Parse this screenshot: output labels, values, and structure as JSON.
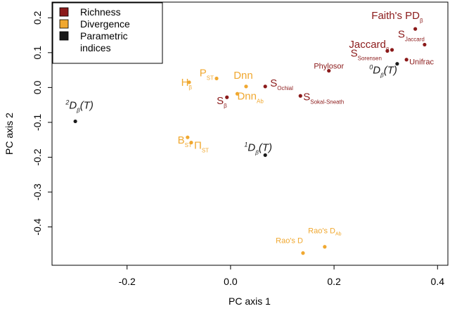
{
  "chart_data": {
    "type": "scatter",
    "xlabel": "PC axis 1",
    "ylabel": "PC axis 2",
    "xlim": [
      -0.345,
      0.42
    ],
    "ylim": [
      -0.51,
      0.245
    ],
    "xticks": [
      -0.2,
      0.0,
      0.2,
      0.4
    ],
    "xtick_labels": [
      "-0.2",
      "0.0",
      "0.2",
      "0.4"
    ],
    "yticks": [
      -0.4,
      -0.3,
      -0.2,
      -0.1,
      0.0,
      0.1,
      0.2
    ],
    "ytick_labels": [
      "-0.4",
      "-0.3",
      "-0.2",
      "-0.1",
      "0.0",
      "0.1",
      "0.2"
    ],
    "grid": false,
    "legend_position": "top-left",
    "groups": [
      {
        "id": "richness",
        "label": "Richness",
        "color": "#8b1a1a"
      },
      {
        "id": "divergence",
        "label": "Divergence",
        "color": "#f0a830"
      },
      {
        "id": "parametric",
        "label": "Parametric\nindices",
        "color": "#1a1a1a"
      }
    ],
    "points": [
      {
        "group": "richness",
        "x": 0.357,
        "y": 0.168,
        "label": "Faith's PD",
        "sub": "β",
        "size": "big",
        "anchor": "end",
        "dx": 11,
        "dy": -14
      },
      {
        "group": "richness",
        "x": 0.375,
        "y": 0.123,
        "label": "S",
        "sub": "Jaccard",
        "size": "big",
        "anchor": "end",
        "dx": 0,
        "dy": -10
      },
      {
        "group": "richness",
        "x": 0.312,
        "y": 0.108,
        "label": "Jaccard",
        "sub": "β",
        "size": "big",
        "anchor": "end",
        "dx": -4,
        "dy": -3
      },
      {
        "group": "richness",
        "x": 0.303,
        "y": 0.105,
        "label": "S",
        "sub": "Sorensen",
        "size": "big",
        "anchor": "end",
        "dx": -8,
        "dy": 8
      },
      {
        "group": "richness",
        "x": 0.34,
        "y": 0.08,
        "label": "Unifrac",
        "sub": "",
        "size": "small",
        "anchor": "start",
        "dx": 4,
        "dy": 7
      },
      {
        "group": "richness",
        "x": 0.19,
        "y": 0.048,
        "label": "Phylosor",
        "sub": "",
        "size": "small",
        "anchor": "middle",
        "dx": 0,
        "dy": -3
      },
      {
        "group": "richness",
        "x": 0.067,
        "y": 0.003,
        "label": "S",
        "sub": "Ochial",
        "size": "big",
        "anchor": "start",
        "dx": 7,
        "dy": 0
      },
      {
        "group": "richness",
        "x": 0.135,
        "y": -0.024,
        "label": "S",
        "sub": "Sokal-Sneath",
        "size": "big",
        "anchor": "start",
        "dx": 4,
        "dy": 6
      },
      {
        "group": "richness",
        "x": -0.007,
        "y": -0.028,
        "label": "S",
        "sub": "β",
        "size": "big",
        "anchor": "end",
        "dx": 0,
        "dy": 10
      },
      {
        "group": "divergence",
        "x": -0.027,
        "y": 0.026,
        "label": "P",
        "sub": "ST",
        "size": "big",
        "anchor": "end",
        "dx": -4,
        "dy": -3
      },
      {
        "group": "divergence",
        "x": 0.03,
        "y": 0.003,
        "label": "Dnn",
        "sub": "",
        "size": "big",
        "anchor": "middle",
        "dx": -4,
        "dy": -11
      },
      {
        "group": "divergence",
        "x": -0.08,
        "y": 0.015,
        "label": "H",
        "sub": "β",
        "size": "big",
        "anchor": "end",
        "dx": 4,
        "dy": 5
      },
      {
        "group": "divergence",
        "x": 0.013,
        "y": -0.018,
        "label": "Dnn",
        "sub": "Ab",
        "size": "big",
        "anchor": "start",
        "dx": 0,
        "dy": 8
      },
      {
        "group": "divergence",
        "x": -0.083,
        "y": -0.143,
        "label": "B",
        "sub": "ST",
        "size": "big",
        "anchor": "end",
        "dx": 6,
        "dy": 9
      },
      {
        "group": "divergence",
        "x": -0.076,
        "y": -0.158,
        "label": "Π",
        "sub": "ST",
        "size": "big",
        "anchor": "start",
        "dx": 4,
        "dy": 9
      },
      {
        "group": "divergence",
        "x": 0.14,
        "y": -0.475,
        "label": "Rao's D",
        "sub": "",
        "size": "small",
        "anchor": "end",
        "dx": 0,
        "dy": -14
      },
      {
        "group": "divergence",
        "x": 0.182,
        "y": -0.457,
        "label": "Rao's D",
        "sub": "Ab",
        "size": "small",
        "anchor": "middle",
        "dx": 0,
        "dy": -19
      },
      {
        "group": "parametric",
        "x": -0.3,
        "y": -0.097,
        "label": "D",
        "pre": "2",
        "sub": "β",
        "suffix": "(T)",
        "size": "big",
        "italic": true,
        "anchor": "middle",
        "dx": 6,
        "dy": -18
      },
      {
        "group": "parametric",
        "x": 0.067,
        "y": -0.194,
        "label": "D",
        "pre": "1",
        "sub": "β",
        "suffix": "(T)",
        "size": "big",
        "italic": true,
        "anchor": "middle",
        "dx": -10,
        "dy": -6
      },
      {
        "group": "parametric",
        "x": 0.322,
        "y": 0.068,
        "label": "D",
        "pre": "0",
        "sub": "β",
        "suffix": "(T)",
        "size": "big",
        "italic": true,
        "anchor": "end",
        "dx": 0,
        "dy": 14
      }
    ]
  }
}
